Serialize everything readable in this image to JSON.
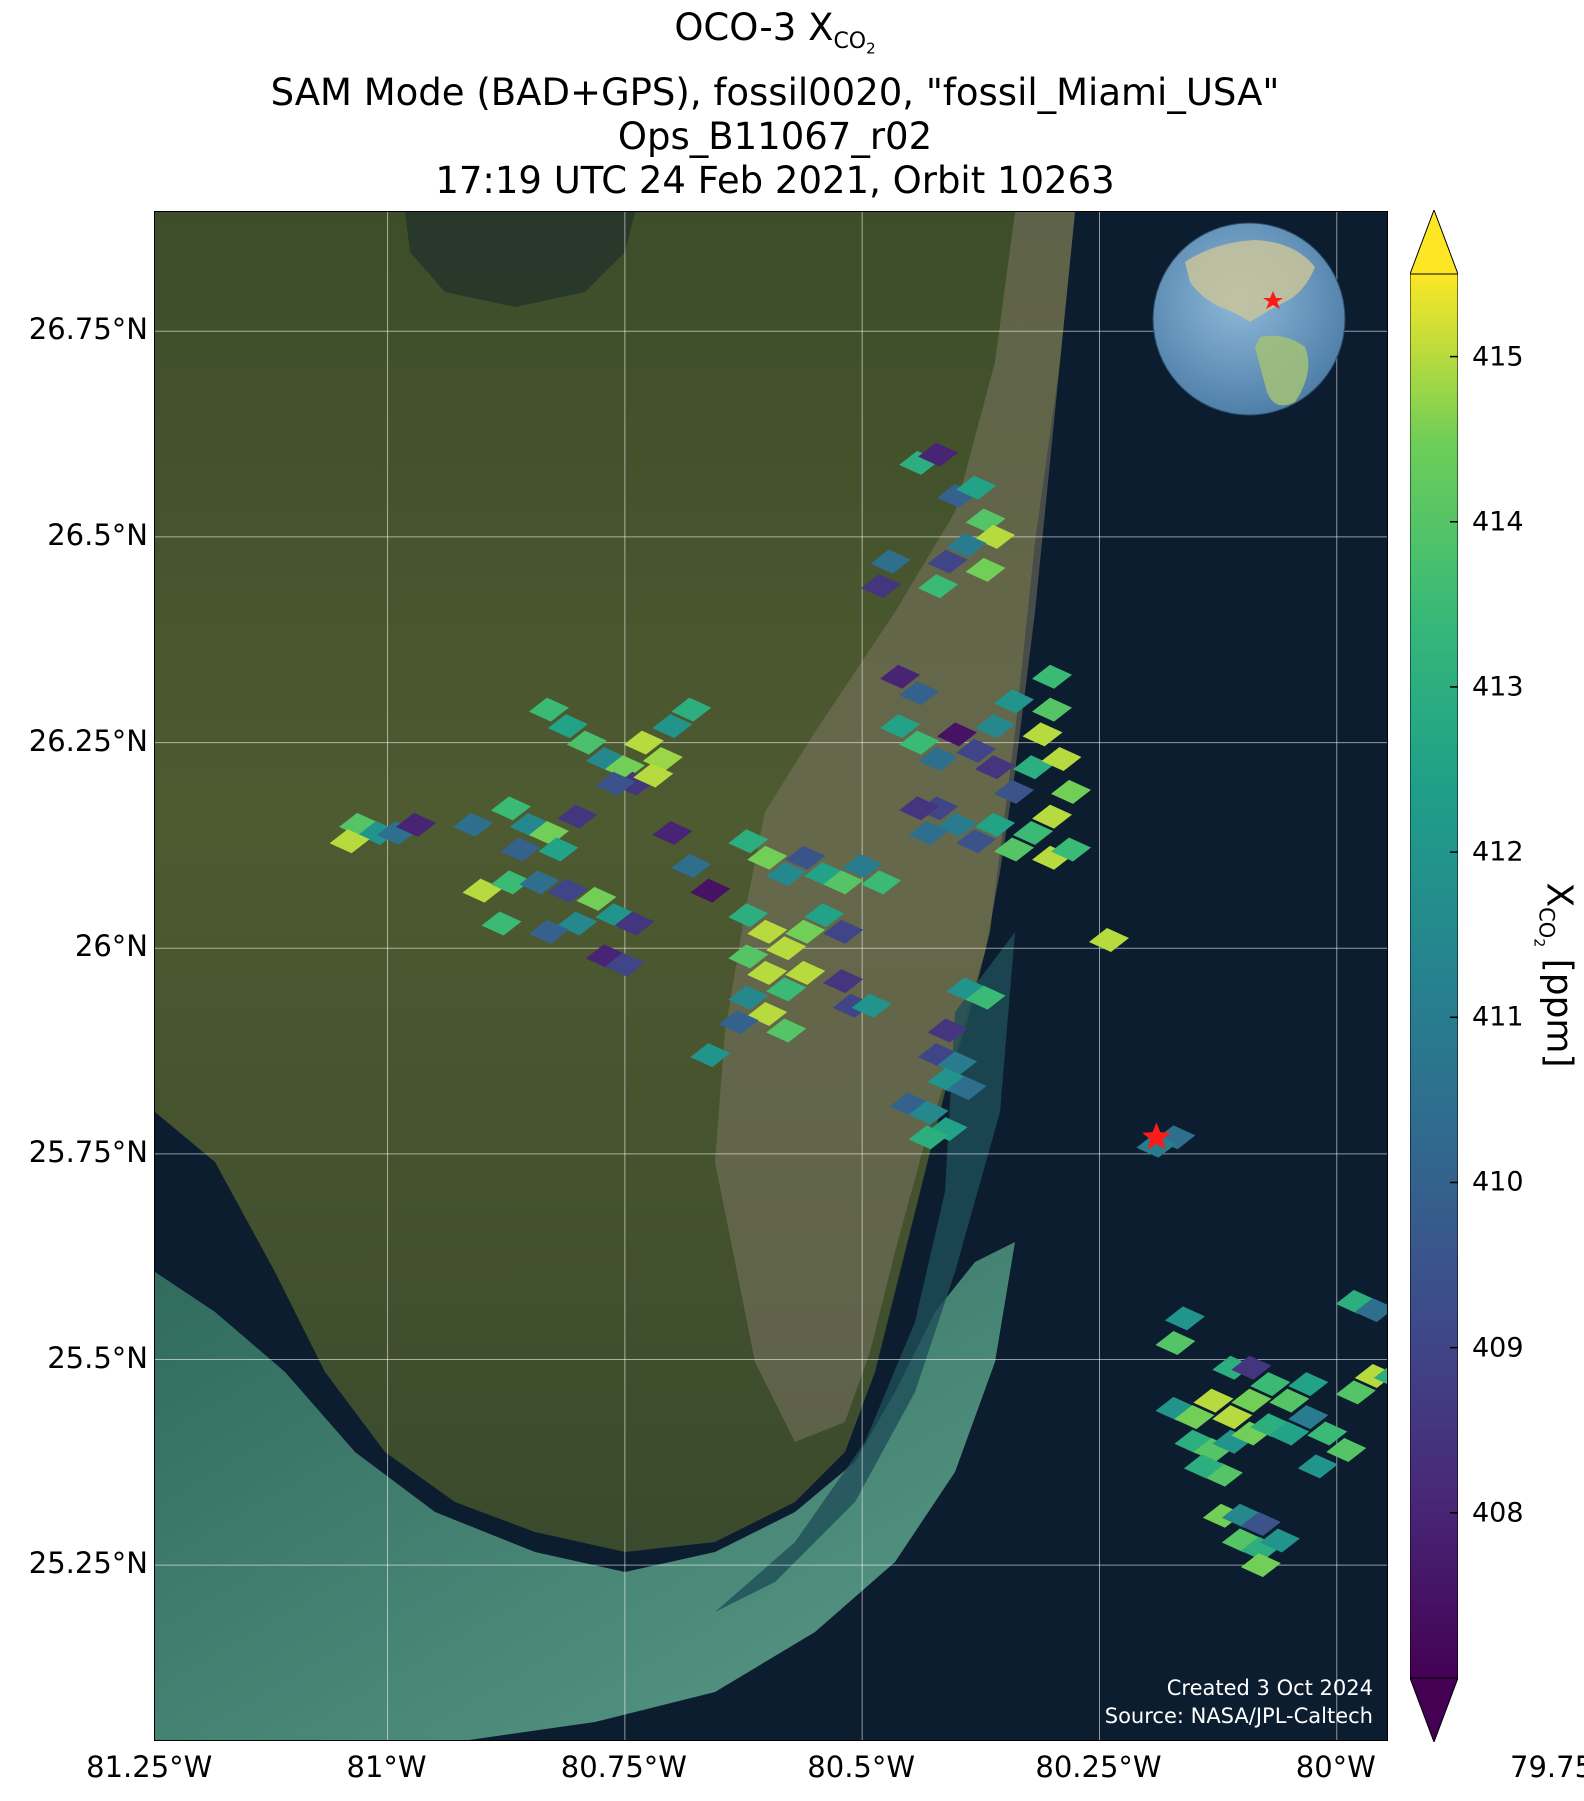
{
  "title": {
    "line1_main": "OCO-3 X",
    "line1_sub": "CO",
    "line1_subsub": "2",
    "line2": "SAM Mode (BAD+GPS), fossil0020, \"fossil_Miami_USA\"",
    "line3": "Ops_B11067_r02",
    "line4": "17:19 UTC 24 Feb 2021, Orbit 10263"
  },
  "map": {
    "lon_ticks": [
      "81.25°W",
      "81°W",
      "80.75°W",
      "80.5°W",
      "80.25°W",
      "80°W",
      "79.75°W"
    ],
    "lat_ticks": [
      "26.75°N",
      "26.5°N",
      "26.25°N",
      "26°N",
      "25.75°N",
      "25.5°N",
      "25.25°N"
    ],
    "lon_values": [
      -81.25,
      -81.0,
      -80.75,
      -80.5,
      -80.25,
      -80.0,
      -79.75
    ],
    "lat_values": [
      26.75,
      26.5,
      26.25,
      26.0,
      25.75,
      25.5,
      25.25
    ],
    "extent": {
      "lon_min": -81.245,
      "lon_max": -79.945,
      "lat_min": 25.035,
      "lat_max": 26.895
    },
    "target": {
      "name": "fossil_Miami_USA",
      "lon": -80.19,
      "lat": 25.77,
      "marker": "red-star"
    },
    "credit_line1": "Created 3 Oct 2024",
    "credit_line2": "Source: NASA/JPL-Caltech",
    "colors": {
      "land": "#4a5a2e",
      "ocean": "#0d1f33",
      "shallow": "#2e7a6a",
      "star": "#ff1a1a"
    }
  },
  "colorbar": {
    "label_main": "X",
    "label_sub": "CO",
    "label_subsub": "2",
    "label_unit": " [ppm]",
    "ticks": [
      "408",
      "409",
      "410",
      "411",
      "412",
      "413",
      "414",
      "415"
    ],
    "tick_values": [
      408,
      409,
      410,
      411,
      412,
      413,
      414,
      415
    ],
    "vmin": 407.0,
    "vmax": 415.5,
    "extend": "both",
    "colormap": "viridis"
  },
  "chart_data": {
    "type": "scatter",
    "title": "OCO-3 XCO2",
    "xlabel": "",
    "ylabel": "",
    "units": "ppm",
    "soundings": [
      {
        "lon": -80.83,
        "lat": 26.29,
        "xco2": 413.5
      },
      {
        "lon": -80.81,
        "lat": 26.27,
        "xco2": 412.5
      },
      {
        "lon": -80.79,
        "lat": 26.25,
        "xco2": 413.8
      },
      {
        "lon": -80.77,
        "lat": 26.23,
        "xco2": 411.5
      },
      {
        "lon": -80.75,
        "lat": 26.22,
        "xco2": 414.5
      },
      {
        "lon": -80.73,
        "lat": 26.25,
        "xco2": 415.0
      },
      {
        "lon": -80.71,
        "lat": 26.23,
        "xco2": 414.8
      },
      {
        "lon": -80.7,
        "lat": 26.27,
        "xco2": 412.0
      },
      {
        "lon": -80.68,
        "lat": 26.29,
        "xco2": 413.0
      },
      {
        "lon": -80.74,
        "lat": 26.2,
        "xco2": 408.5
      },
      {
        "lon": -80.76,
        "lat": 26.2,
        "xco2": 409.5
      },
      {
        "lon": -80.72,
        "lat": 26.21,
        "xco2": 415.0
      },
      {
        "lon": -81.03,
        "lat": 26.15,
        "xco2": 414.0
      },
      {
        "lon": -81.01,
        "lat": 26.14,
        "xco2": 412.0
      },
      {
        "lon": -80.99,
        "lat": 26.14,
        "xco2": 410.5
      },
      {
        "lon": -80.97,
        "lat": 26.15,
        "xco2": 408.0
      },
      {
        "lon": -81.04,
        "lat": 26.13,
        "xco2": 415.0
      },
      {
        "lon": -80.91,
        "lat": 26.15,
        "xco2": 410.5
      },
      {
        "lon": -80.87,
        "lat": 26.17,
        "xco2": 413.5
      },
      {
        "lon": -80.85,
        "lat": 26.15,
        "xco2": 411.5
      },
      {
        "lon": -80.83,
        "lat": 26.14,
        "xco2": 414.5
      },
      {
        "lon": -80.82,
        "lat": 26.12,
        "xco2": 412.5
      },
      {
        "lon": -80.86,
        "lat": 26.12,
        "xco2": 410.0
      },
      {
        "lon": -80.8,
        "lat": 26.16,
        "xco2": 408.5
      },
      {
        "lon": -80.9,
        "lat": 26.07,
        "xco2": 415.0
      },
      {
        "lon": -80.87,
        "lat": 26.08,
        "xco2": 413.5
      },
      {
        "lon": -80.84,
        "lat": 26.08,
        "xco2": 410.5
      },
      {
        "lon": -80.81,
        "lat": 26.07,
        "xco2": 409.0
      },
      {
        "lon": -80.78,
        "lat": 26.06,
        "xco2": 414.5
      },
      {
        "lon": -80.76,
        "lat": 26.04,
        "xco2": 412.0
      },
      {
        "lon": -80.74,
        "lat": 26.03,
        "xco2": 408.5
      },
      {
        "lon": -80.8,
        "lat": 26.03,
        "xco2": 411.5
      },
      {
        "lon": -80.83,
        "lat": 26.02,
        "xco2": 410.0
      },
      {
        "lon": -80.88,
        "lat": 26.03,
        "xco2": 413.5
      },
      {
        "lon": -80.77,
        "lat": 25.99,
        "xco2": 408.0
      },
      {
        "lon": -80.75,
        "lat": 25.98,
        "xco2": 409.0
      },
      {
        "lon": -80.68,
        "lat": 26.1,
        "xco2": 410.5
      },
      {
        "lon": -80.7,
        "lat": 26.14,
        "xco2": 408.0
      },
      {
        "lon": -80.66,
        "lat": 26.07,
        "xco2": 407.5
      },
      {
        "lon": -80.62,
        "lat": 26.13,
        "xco2": 413.0
      },
      {
        "lon": -80.6,
        "lat": 26.11,
        "xco2": 414.5
      },
      {
        "lon": -80.58,
        "lat": 26.09,
        "xco2": 411.5
      },
      {
        "lon": -80.56,
        "lat": 26.11,
        "xco2": 409.5
      },
      {
        "lon": -80.54,
        "lat": 26.09,
        "xco2": 412.5
      },
      {
        "lon": -80.52,
        "lat": 26.08,
        "xco2": 414.0
      },
      {
        "lon": -80.5,
        "lat": 26.1,
        "xco2": 411.0
      },
      {
        "lon": -80.48,
        "lat": 26.08,
        "xco2": 413.5
      },
      {
        "lon": -80.62,
        "lat": 26.04,
        "xco2": 413.0
      },
      {
        "lon": -80.6,
        "lat": 26.02,
        "xco2": 415.0
      },
      {
        "lon": -80.58,
        "lat": 26.0,
        "xco2": 415.0
      },
      {
        "lon": -80.56,
        "lat": 26.02,
        "xco2": 414.5
      },
      {
        "lon": -80.54,
        "lat": 26.04,
        "xco2": 412.5
      },
      {
        "lon": -80.52,
        "lat": 26.02,
        "xco2": 409.0
      },
      {
        "lon": -80.62,
        "lat": 25.99,
        "xco2": 414.0
      },
      {
        "lon": -80.6,
        "lat": 25.97,
        "xco2": 415.0
      },
      {
        "lon": -80.58,
        "lat": 25.95,
        "xco2": 413.5
      },
      {
        "lon": -80.56,
        "lat": 25.97,
        "xco2": 415.0
      },
      {
        "lon": -80.62,
        "lat": 25.94,
        "xco2": 411.5
      },
      {
        "lon": -80.6,
        "lat": 25.92,
        "xco2": 415.0
      },
      {
        "lon": -80.63,
        "lat": 25.91,
        "xco2": 410.0
      },
      {
        "lon": -80.58,
        "lat": 25.9,
        "xco2": 414.0
      },
      {
        "lon": -80.66,
        "lat": 25.87,
        "xco2": 412.0
      },
      {
        "lon": -80.52,
        "lat": 25.96,
        "xco2": 408.5
      },
      {
        "lon": -80.51,
        "lat": 25.93,
        "xco2": 409.0
      },
      {
        "lon": -80.49,
        "lat": 25.93,
        "xco2": 412.0
      },
      {
        "lon": -80.44,
        "lat": 26.59,
        "xco2": 413.0
      },
      {
        "lon": -80.42,
        "lat": 26.6,
        "xco2": 408.0
      },
      {
        "lon": -80.4,
        "lat": 26.55,
        "xco2": 410.0
      },
      {
        "lon": -80.38,
        "lat": 26.56,
        "xco2": 412.5
      },
      {
        "lon": -80.37,
        "lat": 26.52,
        "xco2": 414.0
      },
      {
        "lon": -80.36,
        "lat": 26.5,
        "xco2": 415.0
      },
      {
        "lon": -80.39,
        "lat": 26.49,
        "xco2": 411.0
      },
      {
        "lon": -80.41,
        "lat": 26.47,
        "xco2": 409.0
      },
      {
        "lon": -80.42,
        "lat": 26.44,
        "xco2": 413.5
      },
      {
        "lon": -80.37,
        "lat": 26.46,
        "xco2": 414.5
      },
      {
        "lon": -80.47,
        "lat": 26.47,
        "xco2": 410.5
      },
      {
        "lon": -80.48,
        "lat": 26.44,
        "xco2": 408.5
      },
      {
        "lon": -80.46,
        "lat": 26.33,
        "xco2": 408.0
      },
      {
        "lon": -80.44,
        "lat": 26.31,
        "xco2": 410.0
      },
      {
        "lon": -80.46,
        "lat": 26.27,
        "xco2": 412.5
      },
      {
        "lon": -80.44,
        "lat": 26.25,
        "xco2": 413.5
      },
      {
        "lon": -80.42,
        "lat": 26.23,
        "xco2": 410.5
      },
      {
        "lon": -80.4,
        "lat": 26.26,
        "xco2": 407.5
      },
      {
        "lon": -80.38,
        "lat": 26.24,
        "xco2": 409.0
      },
      {
        "lon": -80.36,
        "lat": 26.27,
        "xco2": 411.5
      },
      {
        "lon": -80.34,
        "lat": 26.3,
        "xco2": 412.0
      },
      {
        "lon": -80.36,
        "lat": 26.22,
        "xco2": 408.5
      },
      {
        "lon": -80.34,
        "lat": 26.19,
        "xco2": 409.5
      },
      {
        "lon": -80.32,
        "lat": 26.22,
        "xco2": 413.0
      },
      {
        "lon": -80.31,
        "lat": 26.26,
        "xco2": 415.0
      },
      {
        "lon": -80.3,
        "lat": 26.29,
        "xco2": 414.0
      },
      {
        "lon": -80.3,
        "lat": 26.33,
        "xco2": 413.5
      },
      {
        "lon": -80.29,
        "lat": 26.23,
        "xco2": 415.0
      },
      {
        "lon": -80.28,
        "lat": 26.19,
        "xco2": 414.5
      },
      {
        "lon": -80.3,
        "lat": 26.16,
        "xco2": 415.0
      },
      {
        "lon": -80.32,
        "lat": 26.14,
        "xco2": 413.5
      },
      {
        "lon": -80.34,
        "lat": 26.12,
        "xco2": 414.0
      },
      {
        "lon": -80.36,
        "lat": 26.15,
        "xco2": 412.5
      },
      {
        "lon": -80.38,
        "lat": 26.13,
        "xco2": 409.5
      },
      {
        "lon": -80.4,
        "lat": 26.15,
        "xco2": 411.0
      },
      {
        "lon": -80.42,
        "lat": 26.17,
        "xco2": 409.0
      },
      {
        "lon": -80.44,
        "lat": 26.17,
        "xco2": 408.5
      },
      {
        "lon": -80.43,
        "lat": 26.14,
        "xco2": 410.5
      },
      {
        "lon": -80.3,
        "lat": 26.11,
        "xco2": 415.0
      },
      {
        "lon": -80.28,
        "lat": 26.12,
        "xco2": 413.5
      },
      {
        "lon": -80.24,
        "lat": 26.01,
        "xco2": 415.0
      },
      {
        "lon": -80.39,
        "lat": 25.95,
        "xco2": 412.0
      },
      {
        "lon": -80.37,
        "lat": 25.94,
        "xco2": 413.5
      },
      {
        "lon": -80.41,
        "lat": 25.9,
        "xco2": 408.5
      },
      {
        "lon": -80.42,
        "lat": 25.87,
        "xco2": 409.0
      },
      {
        "lon": -80.4,
        "lat": 25.86,
        "xco2": 411.0
      },
      {
        "lon": -80.41,
        "lat": 25.84,
        "xco2": 412.0
      },
      {
        "lon": -80.39,
        "lat": 25.83,
        "xco2": 410.5
      },
      {
        "lon": -80.45,
        "lat": 25.81,
        "xco2": 410.0
      },
      {
        "lon": -80.43,
        "lat": 25.8,
        "xco2": 411.5
      },
      {
        "lon": -80.41,
        "lat": 25.78,
        "xco2": 412.5
      },
      {
        "lon": -80.43,
        "lat": 25.77,
        "xco2": 413.0
      },
      {
        "lon": -80.17,
        "lat": 25.77,
        "xco2": 410.5
      },
      {
        "lon": -80.19,
        "lat": 25.76,
        "xco2": 411.0
      },
      {
        "lon": -80.16,
        "lat": 25.55,
        "xco2": 412.0
      },
      {
        "lon": -80.17,
        "lat": 25.52,
        "xco2": 414.0
      },
      {
        "lon": -80.11,
        "lat": 25.49,
        "xco2": 413.0
      },
      {
        "lon": -80.09,
        "lat": 25.49,
        "xco2": 408.5
      },
      {
        "lon": -80.17,
        "lat": 25.44,
        "xco2": 412.0
      },
      {
        "lon": -80.15,
        "lat": 25.43,
        "xco2": 414.5
      },
      {
        "lon": -80.13,
        "lat": 25.45,
        "xco2": 415.0
      },
      {
        "lon": -80.11,
        "lat": 25.43,
        "xco2": 415.0
      },
      {
        "lon": -80.09,
        "lat": 25.45,
        "xco2": 414.5
      },
      {
        "lon": -80.07,
        "lat": 25.47,
        "xco2": 413.5
      },
      {
        "lon": -80.05,
        "lat": 25.45,
        "xco2": 414.0
      },
      {
        "lon": -80.03,
        "lat": 25.47,
        "xco2": 412.5
      },
      {
        "lon": -80.15,
        "lat": 25.4,
        "xco2": 413.0
      },
      {
        "lon": -80.13,
        "lat": 25.39,
        "xco2": 414.0
      },
      {
        "lon": -80.11,
        "lat": 25.4,
        "xco2": 412.0
      },
      {
        "lon": -80.09,
        "lat": 25.41,
        "xco2": 414.5
      },
      {
        "lon": -80.07,
        "lat": 25.42,
        "xco2": 413.0
      },
      {
        "lon": -80.05,
        "lat": 25.41,
        "xco2": 412.5
      },
      {
        "lon": -80.03,
        "lat": 25.43,
        "xco2": 411.0
      },
      {
        "lon": -80.01,
        "lat": 25.41,
        "xco2": 413.5
      },
      {
        "lon": -79.99,
        "lat": 25.39,
        "xco2": 414.0
      },
      {
        "lon": -80.12,
        "lat": 25.36,
        "xco2": 414.0
      },
      {
        "lon": -80.14,
        "lat": 25.37,
        "xco2": 413.0
      },
      {
        "lon": -80.02,
        "lat": 25.37,
        "xco2": 412.0
      },
      {
        "lon": -79.98,
        "lat": 25.46,
        "xco2": 414.0
      },
      {
        "lon": -79.96,
        "lat": 25.48,
        "xco2": 415.0
      },
      {
        "lon": -79.94,
        "lat": 25.48,
        "xco2": 413.0
      },
      {
        "lon": -79.98,
        "lat": 25.57,
        "xco2": 413.0
      },
      {
        "lon": -79.96,
        "lat": 25.56,
        "xco2": 410.5
      },
      {
        "lon": -80.12,
        "lat": 25.31,
        "xco2": 414.5
      },
      {
        "lon": -80.1,
        "lat": 25.31,
        "xco2": 411.5
      },
      {
        "lon": -80.08,
        "lat": 25.3,
        "xco2": 409.5
      },
      {
        "lon": -80.1,
        "lat": 25.28,
        "xco2": 414.0
      },
      {
        "lon": -80.08,
        "lat": 25.27,
        "xco2": 413.0
      },
      {
        "lon": -80.06,
        "lat": 25.28,
        "xco2": 412.0
      },
      {
        "lon": -80.08,
        "lat": 25.25,
        "xco2": 414.5
      }
    ]
  }
}
